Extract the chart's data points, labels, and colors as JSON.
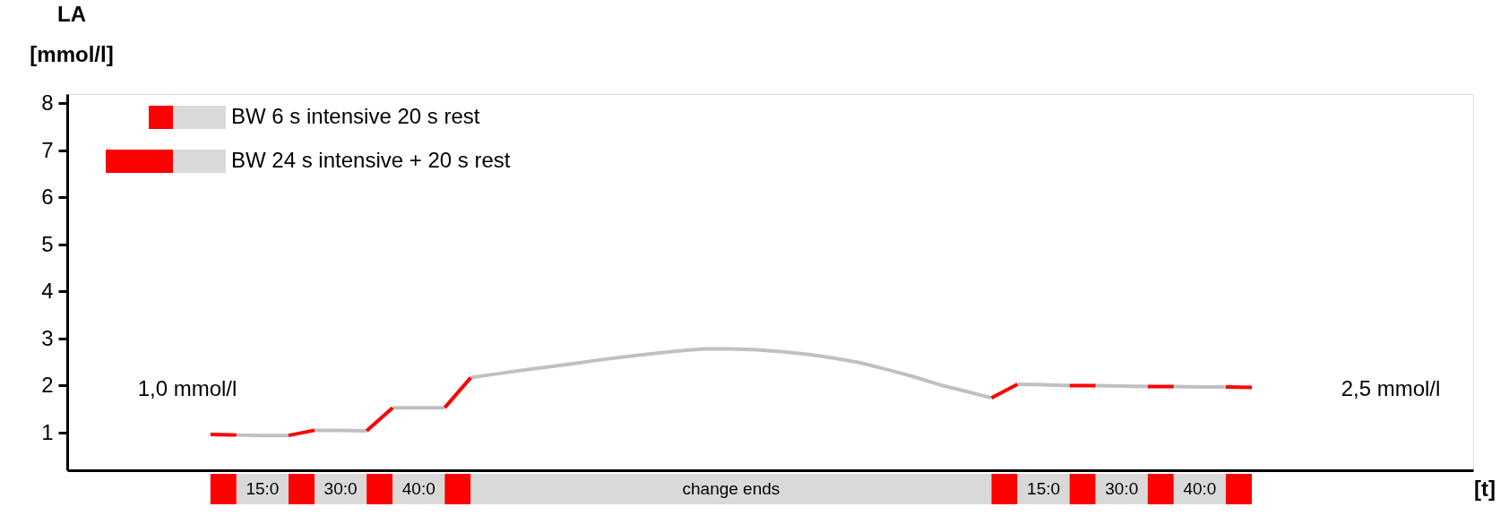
{
  "chart_data": {
    "type": "line",
    "xlabel": "[t]",
    "ylabel": "LA [mmol/l]",
    "categories": [
      null,
      null,
      null,
      null,
      null,
      null,
      null,
      null,
      null,
      null,
      null,
      null,
      null,
      null,
      null,
      null,
      null,
      null,
      null,
      null,
      null,
      null,
      null,
      null,
      null,
      null,
      null,
      null,
      null,
      null,
      null,
      null,
      null,
      null,
      null,
      null,
      null,
      null,
      null,
      null,
      null,
      null,
      null,
      null,
      null,
      null,
      null,
      null,
      null,
      null,
      null,
      null,
      null,
      null
    ],
    "ylim": [
      0.2,
      8.2
    ],
    "yticks": [
      1,
      2,
      3,
      4,
      5,
      6,
      7,
      8
    ],
    "grid": false,
    "tick_labels": "y",
    "line_style": "solid",
    "series": [
      {
        "color": "#c0c0c0",
        "values": [
          null,
          null,
          null,
          null,
          null,
          null,
          0.95,
          0.94,
          0.94,
          null,
          null,
          null,
          null,
          null,
          null,
          null,
          null,
          null,
          null,
          null,
          null,
          null,
          null,
          null,
          null,
          null,
          null,
          null,
          null,
          null,
          null,
          null,
          null,
          null,
          null,
          null,
          null,
          null,
          null,
          null,
          null,
          null,
          null,
          null,
          null,
          null,
          null,
          null,
          null,
          null,
          null,
          null,
          null,
          null
        ]
      },
      {
        "color": "#c0c0c0",
        "values": [
          null,
          null,
          null,
          null,
          null,
          null,
          null,
          null,
          null,
          1.05,
          1.05,
          1.04,
          null,
          null,
          null,
          null,
          null,
          null,
          null,
          null,
          null,
          null,
          null,
          null,
          null,
          null,
          null,
          null,
          null,
          null,
          null,
          null,
          null,
          null,
          null,
          null,
          null,
          null,
          null,
          null,
          null,
          null,
          null,
          null,
          null,
          null,
          null,
          null,
          null,
          null,
          null,
          null,
          null,
          null
        ]
      },
      {
        "color": "#c0c0c0",
        "values": [
          null,
          null,
          null,
          null,
          null,
          null,
          null,
          null,
          null,
          null,
          null,
          null,
          1.53,
          1.53,
          1.53,
          null,
          null,
          null,
          null,
          null,
          null,
          null,
          null,
          null,
          null,
          null,
          null,
          null,
          null,
          null,
          null,
          null,
          null,
          null,
          null,
          null,
          null,
          null,
          null,
          null,
          null,
          null,
          null,
          null,
          null,
          null,
          null,
          null,
          null,
          null,
          null,
          null,
          null,
          null
        ]
      },
      {
        "color": "#c0c0c0",
        "values": [
          null,
          null,
          null,
          null,
          null,
          null,
          null,
          null,
          null,
          null,
          null,
          null,
          null,
          null,
          null,
          2.17,
          2.25,
          2.33,
          2.4,
          2.47,
          2.55,
          2.62,
          2.68,
          2.74,
          2.78,
          2.78,
          2.76,
          2.72,
          2.66,
          2.58,
          2.48,
          2.34,
          2.19,
          2.02,
          1.88,
          1.74,
          null,
          null,
          null,
          null,
          null,
          null,
          null,
          null,
          null,
          null,
          null,
          null,
          null,
          null,
          null,
          null,
          null,
          null
        ]
      },
      {
        "color": "#c0c0c0",
        "values": [
          null,
          null,
          null,
          null,
          null,
          null,
          null,
          null,
          null,
          null,
          null,
          null,
          null,
          null,
          null,
          null,
          null,
          null,
          null,
          null,
          null,
          null,
          null,
          null,
          null,
          null,
          null,
          null,
          null,
          null,
          null,
          null,
          null,
          null,
          null,
          null,
          2.03,
          2.02,
          2.0,
          null,
          null,
          null,
          null,
          null,
          null,
          null,
          null,
          null,
          null,
          null,
          null,
          null,
          null,
          null
        ]
      },
      {
        "color": "#c0c0c0",
        "values": [
          null,
          null,
          null,
          null,
          null,
          null,
          null,
          null,
          null,
          null,
          null,
          null,
          null,
          null,
          null,
          null,
          null,
          null,
          null,
          null,
          null,
          null,
          null,
          null,
          null,
          null,
          null,
          null,
          null,
          null,
          null,
          null,
          null,
          null,
          null,
          null,
          null,
          null,
          null,
          2.0,
          1.99,
          1.98,
          null,
          null,
          null,
          null,
          null,
          null,
          null,
          null,
          null,
          null,
          null,
          null
        ]
      },
      {
        "color": "#c0c0c0",
        "values": [
          null,
          null,
          null,
          null,
          null,
          null,
          null,
          null,
          null,
          null,
          null,
          null,
          null,
          null,
          null,
          null,
          null,
          null,
          null,
          null,
          null,
          null,
          null,
          null,
          null,
          null,
          null,
          null,
          null,
          null,
          null,
          null,
          null,
          null,
          null,
          null,
          null,
          null,
          null,
          null,
          null,
          null,
          1.98,
          1.97,
          1.97,
          null,
          null,
          null,
          null,
          null,
          null,
          null,
          null,
          null
        ]
      },
      {
        "color": "#ff0000",
        "values": [
          null,
          null,
          null,
          null,
          null,
          0.96,
          0.95,
          null,
          null,
          null,
          null,
          null,
          null,
          null,
          null,
          null,
          null,
          null,
          null,
          null,
          null,
          null,
          null,
          null,
          null,
          null,
          null,
          null,
          null,
          null,
          null,
          null,
          null,
          null,
          null,
          null,
          null,
          null,
          null,
          null,
          null,
          null,
          null,
          null,
          null,
          null,
          null,
          null,
          null,
          null,
          null,
          null,
          null,
          null
        ]
      },
      {
        "color": "#ff0000",
        "values": [
          null,
          null,
          null,
          null,
          null,
          null,
          null,
          null,
          0.94,
          1.05,
          null,
          null,
          null,
          null,
          null,
          null,
          null,
          null,
          null,
          null,
          null,
          null,
          null,
          null,
          null,
          null,
          null,
          null,
          null,
          null,
          null,
          null,
          null,
          null,
          null,
          null,
          null,
          null,
          null,
          null,
          null,
          null,
          null,
          null,
          null,
          null,
          null,
          null,
          null,
          null,
          null,
          null,
          null,
          null
        ]
      },
      {
        "color": "#ff0000",
        "values": [
          null,
          null,
          null,
          null,
          null,
          null,
          null,
          null,
          null,
          null,
          null,
          1.04,
          1.53,
          null,
          null,
          null,
          null,
          null,
          null,
          null,
          null,
          null,
          null,
          null,
          null,
          null,
          null,
          null,
          null,
          null,
          null,
          null,
          null,
          null,
          null,
          null,
          null,
          null,
          null,
          null,
          null,
          null,
          null,
          null,
          null,
          null,
          null,
          null,
          null,
          null,
          null,
          null,
          null,
          null
        ]
      },
      {
        "color": "#ff0000",
        "values": [
          null,
          null,
          null,
          null,
          null,
          null,
          null,
          null,
          null,
          null,
          null,
          null,
          null,
          null,
          1.53,
          2.17,
          null,
          null,
          null,
          null,
          null,
          null,
          null,
          null,
          null,
          null,
          null,
          null,
          null,
          null,
          null,
          null,
          null,
          null,
          null,
          null,
          null,
          null,
          null,
          null,
          null,
          null,
          null,
          null,
          null,
          null,
          null,
          null,
          null,
          null,
          null,
          null,
          null,
          null
        ]
      },
      {
        "color": "#ff0000",
        "values": [
          null,
          null,
          null,
          null,
          null,
          null,
          null,
          null,
          null,
          null,
          null,
          null,
          null,
          null,
          null,
          null,
          null,
          null,
          null,
          null,
          null,
          null,
          null,
          null,
          null,
          null,
          null,
          null,
          null,
          null,
          null,
          null,
          null,
          null,
          null,
          1.74,
          2.03,
          null,
          null,
          null,
          null,
          null,
          null,
          null,
          null,
          null,
          null,
          null,
          null,
          null,
          null,
          null,
          null,
          null
        ]
      },
      {
        "color": "#ff0000",
        "values": [
          null,
          null,
          null,
          null,
          null,
          null,
          null,
          null,
          null,
          null,
          null,
          null,
          null,
          null,
          null,
          null,
          null,
          null,
          null,
          null,
          null,
          null,
          null,
          null,
          null,
          null,
          null,
          null,
          null,
          null,
          null,
          null,
          null,
          null,
          null,
          null,
          null,
          null,
          2.0,
          2.0,
          null,
          null,
          null,
          null,
          null,
          null,
          null,
          null,
          null,
          null,
          null,
          null,
          null,
          null
        ]
      },
      {
        "color": "#ff0000",
        "values": [
          null,
          null,
          null,
          null,
          null,
          null,
          null,
          null,
          null,
          null,
          null,
          null,
          null,
          null,
          null,
          null,
          null,
          null,
          null,
          null,
          null,
          null,
          null,
          null,
          null,
          null,
          null,
          null,
          null,
          null,
          null,
          null,
          null,
          null,
          null,
          null,
          null,
          null,
          null,
          null,
          null,
          1.98,
          1.98,
          null,
          null,
          null,
          null,
          null,
          null,
          null,
          null,
          null,
          null,
          null
        ]
      },
      {
        "color": "#ff0000",
        "values": [
          null,
          null,
          null,
          null,
          null,
          null,
          null,
          null,
          null,
          null,
          null,
          null,
          null,
          null,
          null,
          null,
          null,
          null,
          null,
          null,
          null,
          null,
          null,
          null,
          null,
          null,
          null,
          null,
          null,
          null,
          null,
          null,
          null,
          null,
          null,
          null,
          null,
          null,
          null,
          null,
          null,
          null,
          null,
          null,
          1.97,
          1.96,
          null,
          null,
          null,
          null,
          null,
          null,
          null,
          null
        ]
      }
    ],
    "annotations": [
      "BW   6 s intensive 20 s rest",
      "BW 24 s intensive + 20 s rest",
      "15:0",
      "30:0",
      "40:0",
      "change ends",
      "15:0",
      "30:0",
      "40:0",
      "1,0 mmol/l",
      "2,5 mmol/l"
    ]
  }
}
